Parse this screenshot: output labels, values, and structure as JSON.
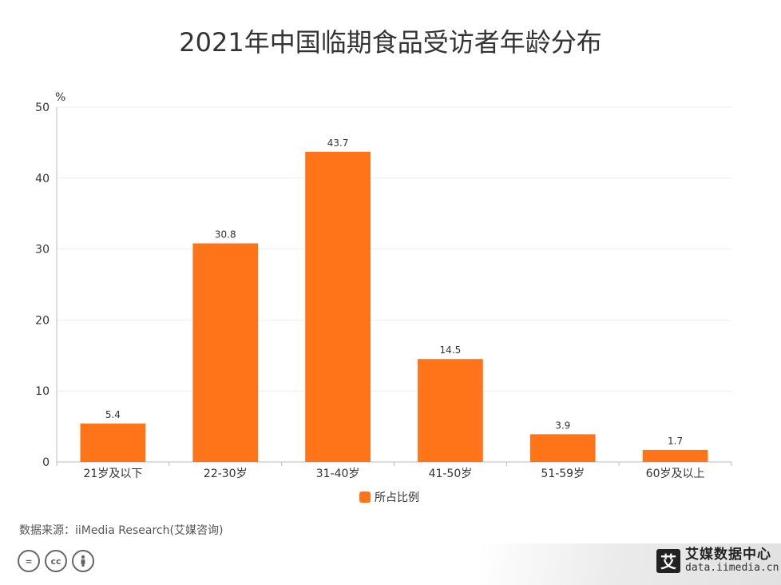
{
  "title": "2021年中国临期食品受访者年龄分布",
  "chart_data": {
    "type": "bar",
    "categories": [
      "21岁及以下",
      "22-30岁",
      "31-40岁",
      "41-50岁",
      "51-59岁",
      "60岁及以上"
    ],
    "series": [
      {
        "name": "所占比例",
        "values": [
          5.4,
          30.8,
          43.7,
          14.5,
          3.9,
          1.7
        ]
      }
    ],
    "ylabel": "%",
    "ylim": [
      0,
      50
    ],
    "yticks": [
      0,
      10,
      20,
      30,
      40,
      50
    ],
    "grid": true,
    "legend_position": "bottom",
    "colors": {
      "bar": "#FF7319",
      "grid": "#EEEEEE",
      "axis": "#BBBBBB"
    }
  },
  "source": "数据来源：iiMedia Research(艾媒咨询)",
  "license_icons": [
    "equal-icon",
    "cc-icon",
    "person-icon"
  ],
  "brand": {
    "logo_char": "艾",
    "name": "艾媒数据中心",
    "url": "data.iimedia.cn"
  }
}
